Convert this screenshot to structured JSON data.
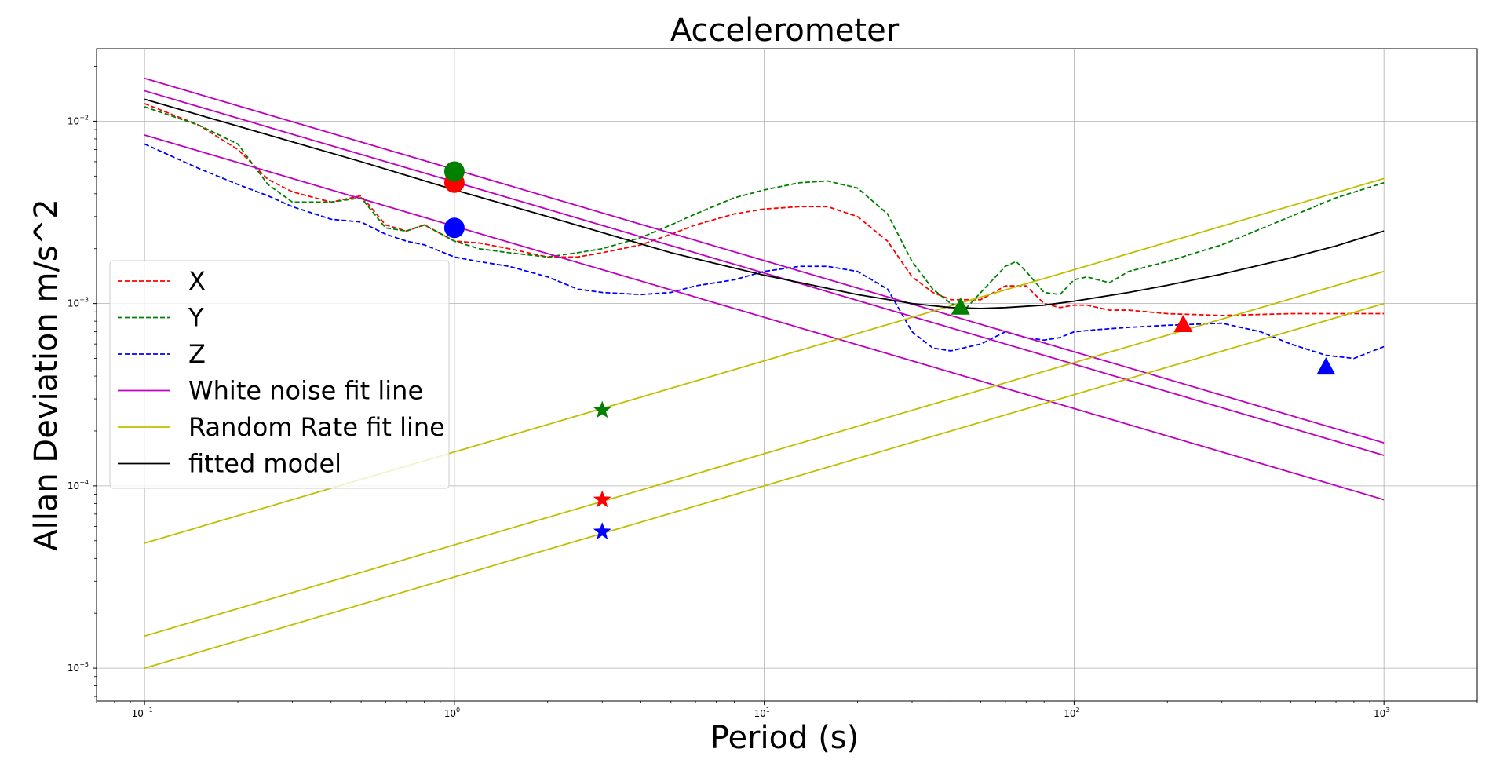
{
  "chart_data": {
    "type": "line",
    "title": "Accelerometer",
    "xlabel": "Period (s)",
    "ylabel": "Allan Deviation m/s^2",
    "xscale": "log",
    "yscale": "log",
    "xlim": [
      0.07,
      2000
    ],
    "ylim": [
      6.6e-06,
      0.025
    ],
    "grid": true,
    "legend_position": "center-left",
    "x_ticks": [
      {
        "value": 0.1,
        "base": "10",
        "exp": "−1"
      },
      {
        "value": 1,
        "base": "10",
        "exp": "0"
      },
      {
        "value": 10,
        "base": "10",
        "exp": "1"
      },
      {
        "value": 100,
        "base": "10",
        "exp": "2"
      },
      {
        "value": 1000,
        "base": "10",
        "exp": "3"
      }
    ],
    "y_ticks": [
      {
        "value": 1e-05,
        "base": "10",
        "exp": "−5"
      },
      {
        "value": 0.0001,
        "base": "10",
        "exp": "−4"
      },
      {
        "value": 0.001,
        "base": "10",
        "exp": "−3"
      },
      {
        "value": 0.01,
        "base": "10",
        "exp": "−2"
      }
    ],
    "series": [
      {
        "name": "X",
        "color": "#ff0000",
        "style": "dashed",
        "x": [
          0.1,
          0.15,
          0.2,
          0.25,
          0.3,
          0.4,
          0.5,
          0.6,
          0.7,
          0.8,
          1,
          1.2,
          1.5,
          2,
          2.5,
          3,
          4,
          5,
          6,
          8,
          10,
          13,
          16,
          20,
          25,
          30,
          35,
          40,
          50,
          60,
          70,
          80,
          90,
          100,
          110,
          130,
          150,
          200,
          300,
          500,
          700,
          1000
        ],
        "y": [
          0.0125,
          0.0095,
          0.007,
          0.0048,
          0.0041,
          0.0036,
          0.0039,
          0.0027,
          0.0025,
          0.0027,
          0.0022,
          0.00215,
          0.002,
          0.0018,
          0.0018,
          0.0019,
          0.0021,
          0.0024,
          0.0027,
          0.0031,
          0.0033,
          0.0034,
          0.0034,
          0.003,
          0.0022,
          0.0014,
          0.00115,
          0.00105,
          0.00105,
          0.00125,
          0.00125,
          0.001,
          0.00095,
          0.00098,
          0.00098,
          0.00092,
          0.00092,
          0.00088,
          0.00086,
          0.00088,
          0.00088,
          0.00088
        ]
      },
      {
        "name": "Y",
        "color": "#008000",
        "style": "dashed",
        "x": [
          0.1,
          0.15,
          0.2,
          0.25,
          0.3,
          0.4,
          0.5,
          0.6,
          0.7,
          0.8,
          1,
          1.2,
          1.5,
          2,
          2.5,
          3,
          4,
          5,
          6,
          8,
          10,
          13,
          16,
          20,
          25,
          30,
          35,
          40,
          45,
          50,
          60,
          65,
          70,
          80,
          90,
          100,
          110,
          130,
          150,
          200,
          300,
          500,
          700,
          1000
        ],
        "y": [
          0.012,
          0.0095,
          0.0075,
          0.0045,
          0.0036,
          0.0036,
          0.0038,
          0.0026,
          0.0025,
          0.0027,
          0.0022,
          0.002,
          0.0019,
          0.0018,
          0.0019,
          0.002,
          0.0023,
          0.0027,
          0.0031,
          0.0038,
          0.0042,
          0.0046,
          0.0047,
          0.0043,
          0.0031,
          0.0017,
          0.0012,
          0.001,
          0.00095,
          0.00115,
          0.0016,
          0.0017,
          0.0015,
          0.00115,
          0.00112,
          0.00135,
          0.0014,
          0.0013,
          0.0015,
          0.0017,
          0.0021,
          0.003,
          0.0038,
          0.0046
        ]
      },
      {
        "name": "Z",
        "color": "#0000ff",
        "style": "dashed",
        "x": [
          0.1,
          0.15,
          0.2,
          0.25,
          0.3,
          0.4,
          0.5,
          0.6,
          0.7,
          0.8,
          1,
          1.2,
          1.5,
          2,
          2.5,
          3,
          4,
          5,
          6,
          8,
          10,
          13,
          16,
          20,
          25,
          30,
          35,
          40,
          50,
          60,
          70,
          80,
          90,
          100,
          120,
          150,
          200,
          300,
          400,
          500,
          650,
          800,
          1000
        ],
        "y": [
          0.0075,
          0.0055,
          0.0045,
          0.0039,
          0.0034,
          0.0029,
          0.0028,
          0.0024,
          0.0022,
          0.0021,
          0.0018,
          0.0017,
          0.0016,
          0.0014,
          0.0012,
          0.00115,
          0.00112,
          0.00115,
          0.00125,
          0.00135,
          0.0015,
          0.0016,
          0.0016,
          0.0015,
          0.0012,
          0.0007,
          0.00057,
          0.00055,
          0.0006,
          0.0007,
          0.00065,
          0.00063,
          0.00065,
          0.0007,
          0.00072,
          0.00074,
          0.00076,
          0.00078,
          0.0007,
          0.0006,
          0.00052,
          0.0005,
          0.00058
        ]
      },
      {
        "name": "White noise fit line",
        "color": "#bf00bf",
        "style": "solid",
        "x": [
          0.1,
          1000
        ],
        "lines": [
          [
            0.0172,
            0.000172
          ],
          [
            0.0147,
            0.000147
          ],
          [
            0.0084,
            8.4e-05
          ]
        ]
      },
      {
        "name": "Random Rate fit line",
        "color": "#bfbf00",
        "style": "solid",
        "x": [
          0.1,
          1000
        ],
        "lines": [
          [
            4.85e-05,
            0.00485
          ],
          [
            1.5e-05,
            0.0015
          ],
          [
            1e-05,
            0.001
          ]
        ]
      },
      {
        "name": "fitted model",
        "color": "#000000",
        "style": "solid",
        "x": [
          0.1,
          0.2,
          0.5,
          1,
          2,
          5,
          10,
          20,
          30,
          40,
          50,
          60,
          80,
          100,
          150,
          200,
          300,
          500,
          700,
          1000
        ],
        "y": [
          0.0132,
          0.0094,
          0.006,
          0.0042,
          0.003,
          0.0019,
          0.00143,
          0.00112,
          0.001,
          0.00095,
          0.00094,
          0.00095,
          0.00098,
          0.00103,
          0.00115,
          0.00126,
          0.00145,
          0.00178,
          0.00207,
          0.0025
        ]
      }
    ],
    "markers": [
      {
        "shape": "circle",
        "color": "#ff0000",
        "x": 1,
        "y": 0.0046
      },
      {
        "shape": "circle",
        "color": "#008000",
        "x": 1,
        "y": 0.0053
      },
      {
        "shape": "circle",
        "color": "#0000ff",
        "x": 1,
        "y": 0.0026
      },
      {
        "shape": "star",
        "color": "#008000",
        "x": 3,
        "y": 0.00026
      },
      {
        "shape": "star",
        "color": "#ff0000",
        "x": 3,
        "y": 8.4e-05
      },
      {
        "shape": "star",
        "color": "#0000ff",
        "x": 3,
        "y": 5.6e-05
      },
      {
        "shape": "triangle",
        "color": "#008000",
        "x": 43,
        "y": 0.00096
      },
      {
        "shape": "triangle",
        "color": "#ff0000",
        "x": 225,
        "y": 0.00077
      },
      {
        "shape": "triangle",
        "color": "#0000ff",
        "x": 650,
        "y": 0.00045
      }
    ],
    "legend": [
      {
        "label": "X",
        "color": "#ff0000",
        "style": "dashed"
      },
      {
        "label": "Y",
        "color": "#008000",
        "style": "dashed"
      },
      {
        "label": "Z",
        "color": "#0000ff",
        "style": "dashed"
      },
      {
        "label": "White noise fit line",
        "color": "#bf00bf",
        "style": "solid"
      },
      {
        "label": "Random Rate fit line",
        "color": "#bfbf00",
        "style": "solid"
      },
      {
        "label": "fitted model",
        "color": "#000000",
        "style": "solid"
      }
    ]
  }
}
